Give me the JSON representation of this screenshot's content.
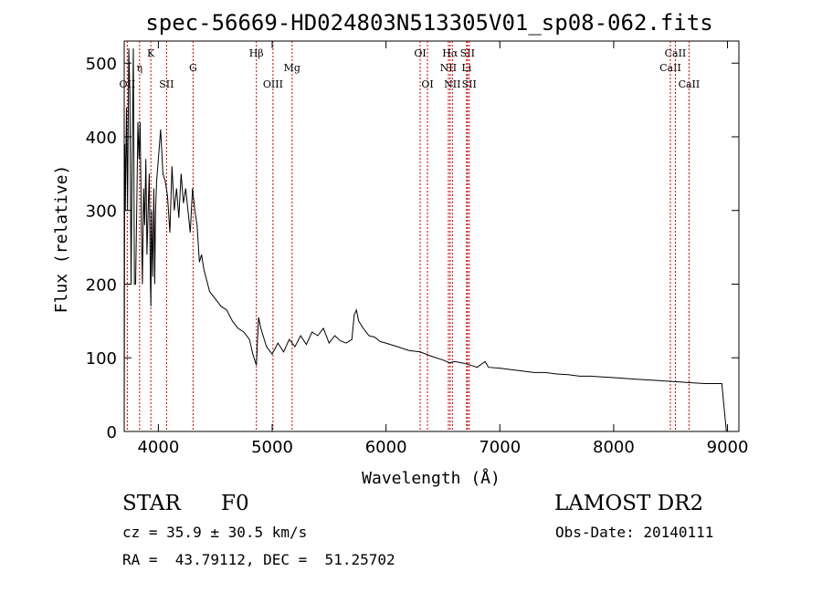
{
  "chart_data": {
    "type": "line",
    "title": "spec-56669-HD024803N513305V01_sp08-062.fits",
    "xlabel": "Wavelength (Å)",
    "ylabel": "Flux (relative)",
    "xlim": [
      3700,
      9100
    ],
    "ylim": [
      0,
      530
    ],
    "xticks": [
      4000,
      5000,
      6000,
      7000,
      8000,
      9000
    ],
    "yticks": [
      0,
      100,
      200,
      300,
      400,
      500
    ],
    "grid": false,
    "line_color": "#000000",
    "marker_color": "#cc0000",
    "series": [
      {
        "x": [
          3700,
          3705,
          3710,
          3720,
          3730,
          3740,
          3750,
          3760,
          3770,
          3780,
          3790,
          3800,
          3810,
          3820,
          3830,
          3840,
          3850,
          3860,
          3870,
          3880,
          3890,
          3900,
          3910,
          3920,
          3930,
          3934,
          3940,
          3950,
          3960,
          3968,
          3975,
          3985,
          4000,
          4020,
          4040,
          4060,
          4080,
          4101,
          4120,
          4140,
          4160,
          4180,
          4200,
          4220,
          4240,
          4260,
          4280,
          4300,
          4320,
          4340,
          4360,
          4380,
          4400,
          4450,
          4500,
          4550,
          4600,
          4650,
          4700,
          4750,
          4800,
          4830,
          4861,
          4880,
          4900,
          4950,
          5000,
          5050,
          5100,
          5150,
          5200,
          5250,
          5300,
          5350,
          5400,
          5450,
          5500,
          5550,
          5600,
          5650,
          5700,
          5720,
          5740,
          5760,
          5800,
          5850,
          5900,
          5950,
          6000,
          6100,
          6200,
          6300,
          6400,
          6500,
          6563,
          6600,
          6700,
          6800,
          6870,
          6900,
          7000,
          7100,
          7200,
          7300,
          7400,
          7500,
          7600,
          7700,
          7800,
          7900,
          8000,
          8100,
          8200,
          8300,
          8400,
          8500,
          8600,
          8700,
          8800,
          8900,
          8950,
          8990
        ],
        "values": [
          0,
          390,
          300,
          440,
          300,
          520,
          460,
          200,
          370,
          520,
          200,
          200,
          300,
          420,
          370,
          420,
          290,
          200,
          330,
          280,
          370,
          240,
          300,
          350,
          200,
          170,
          300,
          210,
          330,
          200,
          300,
          340,
          370,
          410,
          350,
          340,
          320,
          270,
          360,
          300,
          330,
          290,
          350,
          310,
          330,
          300,
          270,
          330,
          300,
          280,
          230,
          240,
          220,
          190,
          180,
          170,
          165,
          150,
          140,
          135,
          125,
          105,
          90,
          155,
          140,
          115,
          105,
          120,
          108,
          125,
          115,
          130,
          118,
          135,
          130,
          140,
          120,
          130,
          123,
          120,
          125,
          158,
          165,
          150,
          140,
          130,
          128,
          122,
          120,
          115,
          110,
          108,
          102,
          97,
          93,
          95,
          92,
          87,
          95,
          87,
          86,
          84,
          82,
          80,
          80,
          78,
          77,
          75,
          75,
          74,
          73,
          72,
          71,
          70,
          69,
          68,
          67,
          66,
          65,
          65,
          65,
          0
        ]
      }
    ],
    "lines": [
      {
        "name": "OII",
        "x": 3727,
        "row": 2
      },
      {
        "name": "η",
        "x": 3835,
        "row": 1
      },
      {
        "name": "K",
        "x": 3934,
        "row": 0
      },
      {
        "name": "SII",
        "x": 4072,
        "row": 2
      },
      {
        "name": "G",
        "x": 4305,
        "row": 1
      },
      {
        "name": "Hβ",
        "x": 4861,
        "row": 0
      },
      {
        "name": "OIII",
        "x": 5007,
        "row": 2
      },
      {
        "name": "Mg",
        "x": 5175,
        "row": 1
      },
      {
        "name": "OI",
        "x": 6300,
        "row": 0
      },
      {
        "name": "OI",
        "x": 6364,
        "row": 2
      },
      {
        "name": "NII",
        "x": 6548,
        "row": 1
      },
      {
        "name": "Hα",
        "x": 6563,
        "row": 0
      },
      {
        "name": "NII",
        "x": 6583,
        "row": 2
      },
      {
        "name": "SII",
        "x": 6716,
        "row": 0
      },
      {
        "name": "Li",
        "x": 6708,
        "row": 1
      },
      {
        "name": "SII",
        "x": 6731,
        "row": 2
      },
      {
        "name": "CaII",
        "x": 8498,
        "row": 1
      },
      {
        "name": "CaII",
        "x": 8542,
        "row": 0
      },
      {
        "name": "CaII",
        "x": 8662,
        "row": 2
      }
    ]
  },
  "info": {
    "class": "STAR",
    "subclass": "F0",
    "survey": "LAMOST DR2",
    "cz": "cz = 35.9 ± 30.5 km/s",
    "obs_date": "Obs-Date: 20140111",
    "coords": "RA =  43.79112, DEC =  51.25702"
  }
}
